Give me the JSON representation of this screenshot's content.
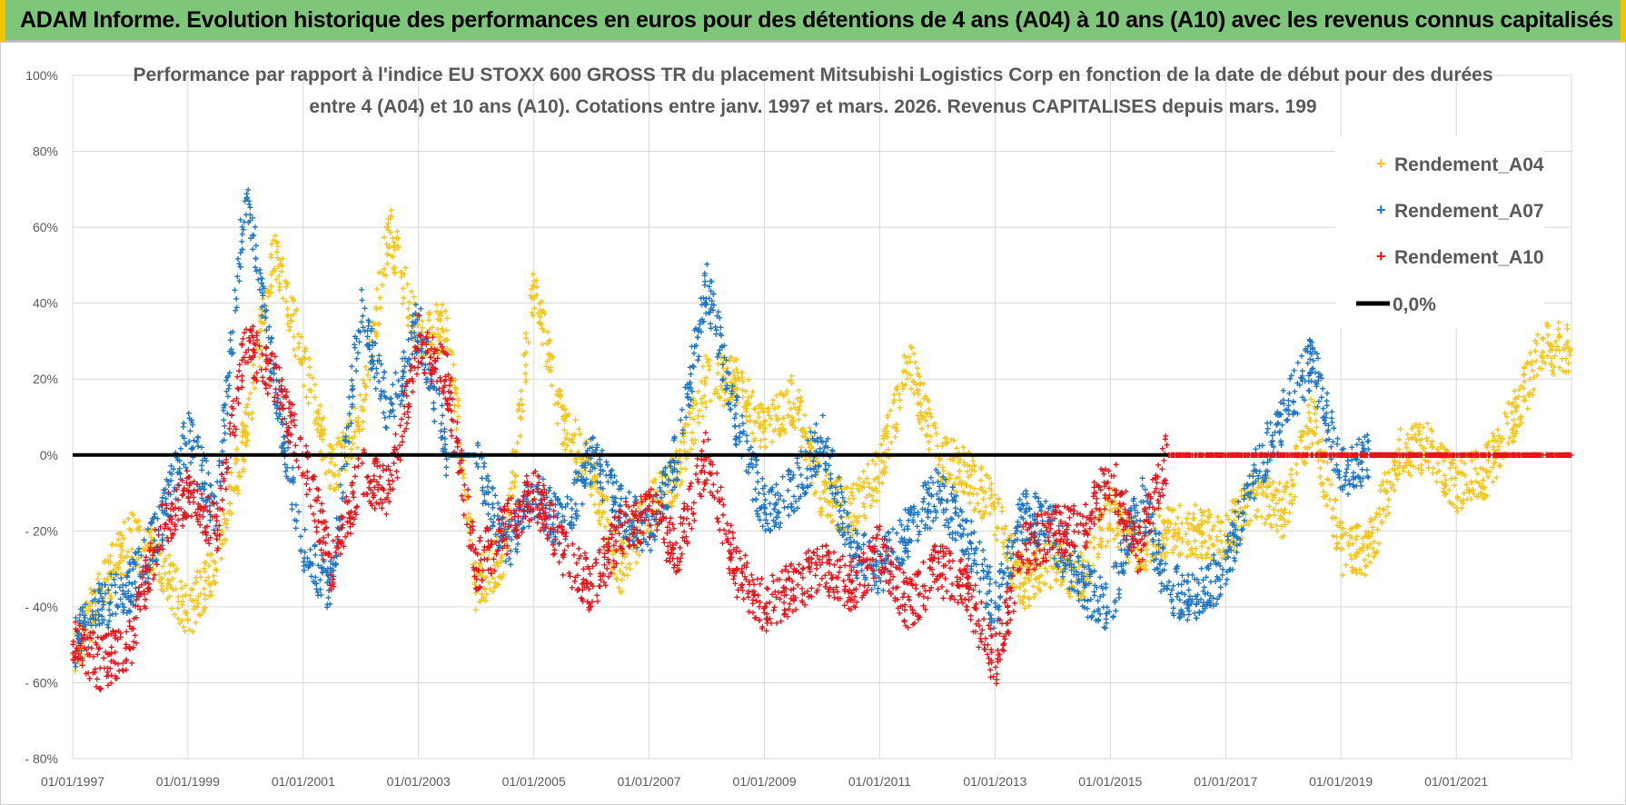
{
  "banner": {
    "title": "ADAM Informe. Evolution historique des performances en euros pour des détentions de 4 ans (A04) à 10 ans (A10) avec les revenus connus capitalisés"
  },
  "colors": {
    "banner_bg": "#7dc67a",
    "banner_accent": "#f2c300",
    "a04": "#f5c518",
    "a07": "#1f77c4",
    "a10": "#e8141c",
    "zero_line": "#000000"
  },
  "chart_data": {
    "type": "scatter",
    "title_lines": [
      "Performance par rapport à l'indice EU STOXX 600 GROSS TR  du placement Mitsubishi Logistics Corp en fonction de la date de début pour des durées",
      "entre 4 (A04) et 10 ans (A10).  Cotations entre janv. 1997 et mars. 2026. Revenus CAPITALISES depuis mars. 199"
    ],
    "xlim": [
      "1997-01-01",
      "2023-01-01"
    ],
    "ylim": [
      -0.8,
      1.0
    ],
    "y_ticks": [
      -0.8,
      -0.6,
      -0.4,
      -0.2,
      0.0,
      0.2,
      0.4,
      0.6,
      0.8,
      1.0
    ],
    "y_tick_labels": [
      "- 80%",
      "- 60%",
      "- 40%",
      "- 20%",
      "0%",
      "20%",
      "40%",
      "60%",
      "80%",
      "100%"
    ],
    "x_tick_labels": [
      "01/01/1997",
      "01/01/1999",
      "01/01/2001",
      "01/01/2003",
      "01/01/2005",
      "01/01/2007",
      "01/01/2009",
      "01/01/2011",
      "01/01/2013",
      "01/01/2015",
      "01/01/2017",
      "01/01/2019",
      "01/01/2021"
    ],
    "x_tick_dates": [
      "1997-01-01",
      "1999-01-01",
      "2001-01-01",
      "2003-01-01",
      "2005-01-01",
      "2007-01-01",
      "2009-01-01",
      "2011-01-01",
      "2013-01-01",
      "2015-01-01",
      "2017-01-01",
      "2019-01-01",
      "2021-01-01"
    ],
    "grid": true,
    "legend_position": "top-right",
    "series": [
      {
        "name": "Rendement_A04",
        "color": "#f5c518",
        "x": [
          "1997-01",
          "1997-07",
          "1998-01",
          "1998-07",
          "1999-01",
          "1999-07",
          "2000-01",
          "2000-07",
          "2001-01",
          "2001-07",
          "2002-01",
          "2002-07",
          "2003-01",
          "2003-07",
          "2004-01",
          "2004-07",
          "2005-01",
          "2005-07",
          "2006-01",
          "2006-07",
          "2007-01",
          "2007-07",
          "2008-01",
          "2008-07",
          "2009-01",
          "2009-07",
          "2010-01",
          "2010-07",
          "2011-01",
          "2011-07",
          "2012-01",
          "2012-07",
          "2013-01",
          "2013-07",
          "2014-01",
          "2014-07",
          "2015-01",
          "2015-07",
          "2016-01",
          "2016-07",
          "2017-01",
          "2017-07",
          "2018-01",
          "2018-07",
          "2019-01",
          "2019-07",
          "2020-01",
          "2020-07",
          "2021-01",
          "2021-07",
          "2022-01",
          "2022-07"
        ],
        "y": [
          -0.55,
          -0.35,
          -0.22,
          -0.28,
          -0.42,
          -0.28,
          0.05,
          0.55,
          0.25,
          -0.05,
          0.1,
          0.6,
          0.3,
          0.35,
          -0.35,
          -0.25,
          0.45,
          0.08,
          -0.05,
          -0.3,
          -0.15,
          -0.05,
          0.2,
          0.2,
          0.05,
          0.15,
          -0.1,
          -0.15,
          -0.05,
          0.25,
          0.0,
          -0.05,
          -0.15,
          -0.35,
          -0.28,
          -0.32,
          -0.15,
          -0.25,
          -0.2,
          -0.2,
          -0.22,
          -0.1,
          -0.15,
          0.1,
          -0.25,
          -0.25,
          0.0,
          0.02,
          -0.08,
          -0.05,
          0.1,
          0.28
        ]
      },
      {
        "name": "Rendement_A07",
        "color": "#1f77c4",
        "x": [
          "1997-01",
          "1997-07",
          "1998-01",
          "1998-07",
          "1999-01",
          "1999-07",
          "2000-01",
          "2000-07",
          "2001-01",
          "2001-07",
          "2002-01",
          "2002-07",
          "2003-01",
          "2003-07",
          "2004-01",
          "2004-07",
          "2005-01",
          "2005-07",
          "2006-01",
          "2006-07",
          "2007-01",
          "2007-07",
          "2008-01",
          "2008-07",
          "2009-01",
          "2009-07",
          "2010-01",
          "2010-07",
          "2011-01",
          "2011-07",
          "2012-01",
          "2012-07",
          "2013-01",
          "2013-07",
          "2014-01",
          "2014-07",
          "2015-01",
          "2015-07",
          "2016-01",
          "2016-07",
          "2017-01",
          "2017-07",
          "2018-01",
          "2018-07",
          "2019-01",
          "2019-07"
        ],
        "y": [
          -0.5,
          -0.4,
          -0.35,
          -0.2,
          0.05,
          -0.15,
          0.7,
          0.2,
          -0.25,
          -0.35,
          0.4,
          0.1,
          0.35,
          0.0,
          0.0,
          -0.25,
          -0.1,
          -0.2,
          0.0,
          -0.15,
          -0.2,
          0.0,
          0.45,
          0.1,
          -0.15,
          -0.1,
          0.05,
          -0.25,
          -0.3,
          -0.2,
          -0.1,
          -0.2,
          -0.4,
          -0.15,
          -0.2,
          -0.35,
          -0.4,
          -0.1,
          -0.35,
          -0.38,
          -0.3,
          -0.05,
          0.1,
          0.25,
          -0.05,
          0.0
        ]
      },
      {
        "name": "Rendement_A10",
        "color": "#e8141c",
        "x": [
          "1997-01",
          "1997-07",
          "1998-01",
          "1998-07",
          "1999-01",
          "1999-07",
          "2000-01",
          "2000-07",
          "2001-01",
          "2001-07",
          "2002-01",
          "2002-07",
          "2003-01",
          "2003-07",
          "2004-01",
          "2004-07",
          "2005-01",
          "2005-07",
          "2006-01",
          "2006-07",
          "2007-01",
          "2007-07",
          "2008-01",
          "2008-07",
          "2009-01",
          "2009-07",
          "2010-01",
          "2010-07",
          "2011-01",
          "2011-07",
          "2012-01",
          "2012-07",
          "2013-01",
          "2013-07",
          "2014-01",
          "2014-07",
          "2015-01",
          "2015-07",
          "2016-01",
          "2016-07",
          "2017-01",
          "2017-07",
          "2018-01",
          "2018-07",
          "2019-01",
          "2019-07",
          "2020-01",
          "2020-07",
          "2021-01",
          "2021-07",
          "2022-01",
          "2022-07"
        ],
        "y": [
          -0.5,
          -0.55,
          -0.5,
          -0.2,
          -0.1,
          -0.2,
          0.3,
          0.2,
          0.0,
          -0.3,
          -0.05,
          -0.1,
          0.3,
          0.2,
          -0.3,
          -0.2,
          -0.1,
          -0.25,
          -0.35,
          -0.2,
          -0.15,
          -0.25,
          0.0,
          -0.3,
          -0.4,
          -0.35,
          -0.3,
          -0.35,
          -0.25,
          -0.4,
          -0.3,
          -0.35,
          -0.55,
          -0.25,
          -0.2,
          -0.2,
          -0.05,
          -0.25,
          0.0,
          0.0,
          0.0,
          0.0,
          0.0,
          0.0,
          0.0,
          0.0,
          0.0,
          0.0,
          0.0,
          0.0,
          0.0,
          0.0
        ]
      }
    ],
    "reference_line": {
      "name": "0,0%",
      "y": 0.0
    }
  }
}
